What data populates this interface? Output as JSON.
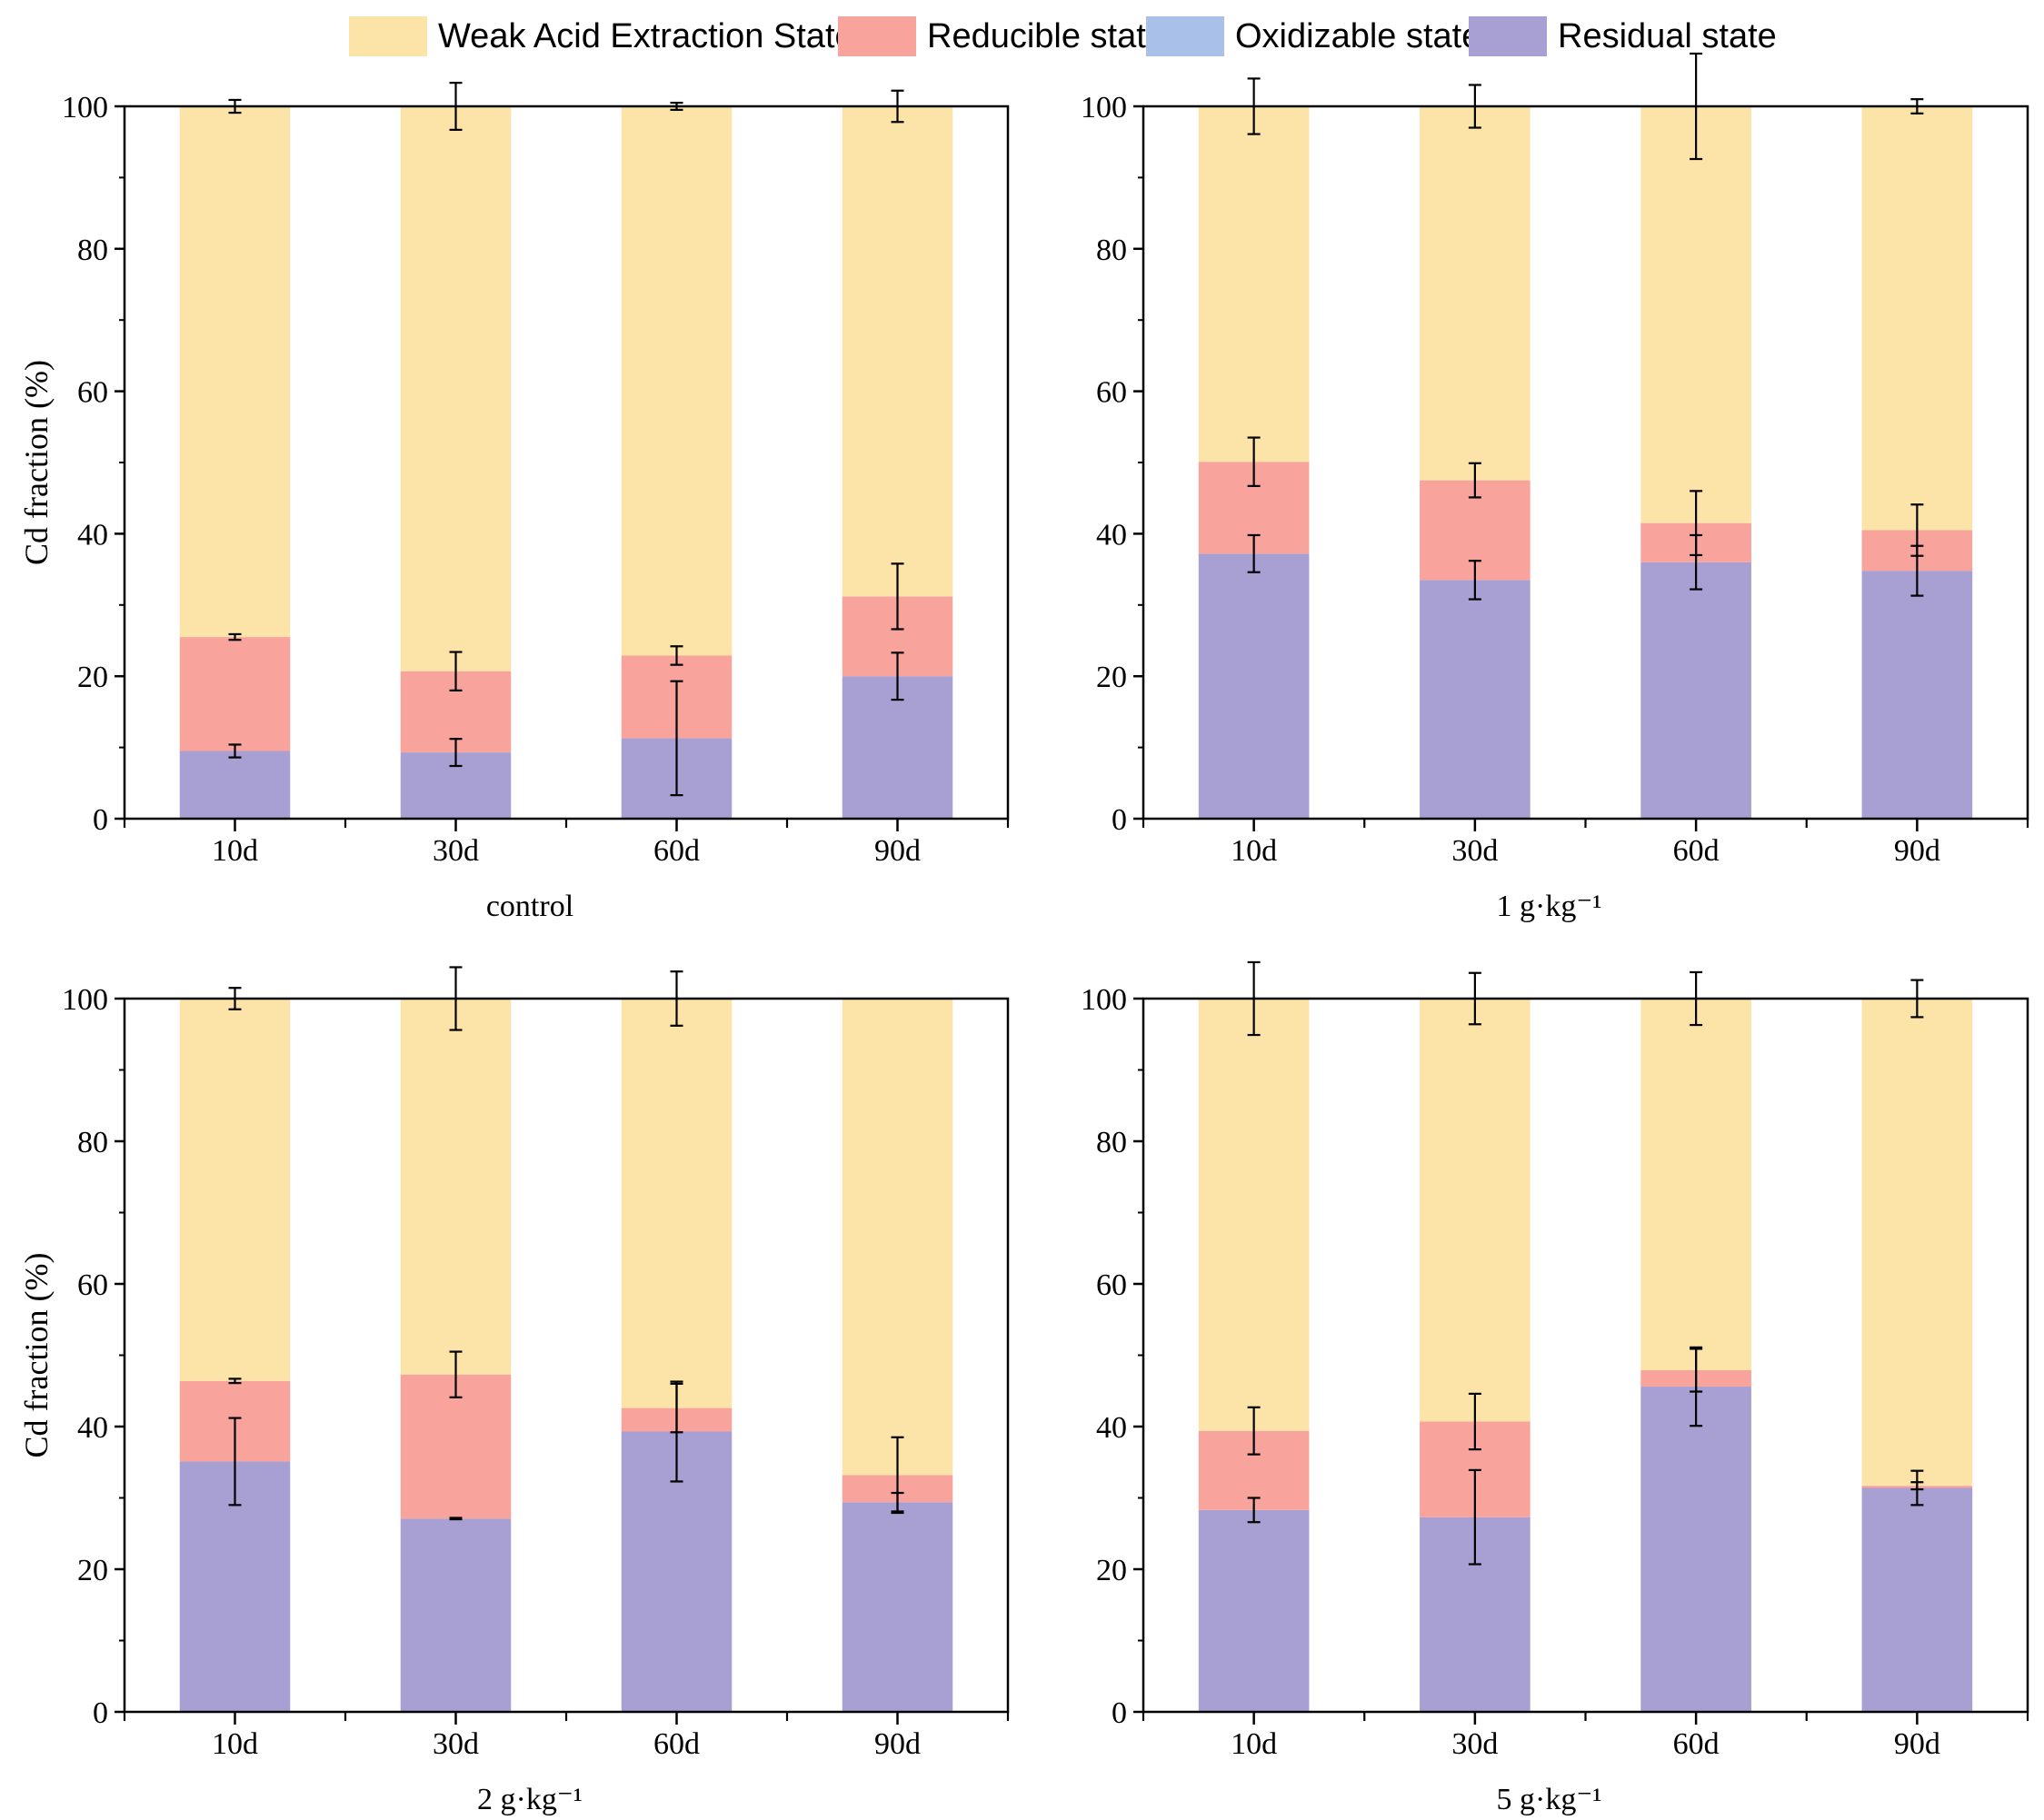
{
  "legend": [
    {
      "label": "Weak Acid Extraction State",
      "color": "#fce4a8"
    },
    {
      "label": "Reducible state",
      "color": "#f9a39d"
    },
    {
      "label": "Oxidizable state",
      "color": "#a9c1e9"
    },
    {
      "label": "Residual state",
      "color": "#a89fd2"
    }
  ],
  "chart_data": [
    {
      "type": "bar",
      "stacked": true,
      "title": "control",
      "ylabel": "Cd fraction (%)",
      "xlabel": "control",
      "categories": [
        "10d",
        "30d",
        "60d",
        "90d"
      ],
      "ylim": [
        0,
        100
      ],
      "yticks": [
        0,
        20,
        40,
        60,
        80,
        100
      ],
      "series": [
        {
          "name": "Residual state",
          "values": [
            9.5,
            9.3,
            11.3,
            20.0
          ],
          "errors": [
            0.9,
            1.9,
            8.0,
            3.3
          ]
        },
        {
          "name": "Oxidizable state",
          "values": [
            0,
            0,
            0,
            0
          ],
          "errors": [
            0,
            0,
            0,
            0
          ]
        },
        {
          "name": "Reducible state",
          "values": [
            16.0,
            11.4,
            11.6,
            11.2
          ],
          "errors": [
            0.4,
            2.7,
            1.3,
            4.6
          ]
        },
        {
          "name": "Weak Acid Extraction State",
          "values": [
            74.5,
            79.3,
            77.1,
            68.8
          ],
          "errors": [
            0.9,
            3.3,
            0.5,
            2.2
          ]
        }
      ]
    },
    {
      "type": "bar",
      "stacked": true,
      "title": "1 g·kg⁻¹",
      "ylabel": "",
      "xlabel": "1 g·kg⁻¹",
      "categories": [
        "10d",
        "30d",
        "60d",
        "90d"
      ],
      "ylim": [
        0,
        100
      ],
      "yticks": [
        0,
        20,
        40,
        60,
        80,
        100
      ],
      "series": [
        {
          "name": "Residual state",
          "values": [
            37.2,
            33.5,
            36.0,
            34.8
          ],
          "errors": [
            2.6,
            2.7,
            3.8,
            3.5
          ]
        },
        {
          "name": "Oxidizable state",
          "values": [
            0,
            0,
            0,
            0
          ],
          "errors": [
            0,
            0,
            0,
            0
          ]
        },
        {
          "name": "Reducible state",
          "values": [
            12.9,
            14.0,
            5.5,
            5.7
          ],
          "errors": [
            3.4,
            2.4,
            4.5,
            3.6
          ]
        },
        {
          "name": "Weak Acid Extraction State",
          "values": [
            49.9,
            52.5,
            58.5,
            59.5
          ],
          "errors": [
            3.9,
            3.0,
            7.4,
            1.0
          ]
        }
      ]
    },
    {
      "type": "bar",
      "stacked": true,
      "title": "2 g·kg⁻¹",
      "ylabel": "Cd fraction (%)",
      "xlabel": "2 g·kg⁻¹",
      "categories": [
        "10d",
        "30d",
        "60d",
        "90d"
      ],
      "ylim": [
        0,
        100
      ],
      "yticks": [
        0,
        20,
        40,
        60,
        80,
        100
      ],
      "series": [
        {
          "name": "Residual state",
          "values": [
            35.1,
            27.1,
            39.3,
            29.4
          ],
          "errors": [
            6.1,
            0.1,
            7.0,
            1.3
          ]
        },
        {
          "name": "Oxidizable state",
          "values": [
            0,
            0,
            0,
            0
          ],
          "errors": [
            0,
            0,
            0,
            0
          ]
        },
        {
          "name": "Reducible state",
          "values": [
            11.3,
            20.2,
            3.3,
            3.8
          ],
          "errors": [
            0.3,
            3.2,
            3.4,
            5.3
          ]
        },
        {
          "name": "Weak Acid Extraction State",
          "values": [
            53.6,
            52.7,
            57.4,
            66.8
          ],
          "errors": [
            1.5,
            4.4,
            3.8,
            0
          ]
        }
      ]
    },
    {
      "type": "bar",
      "stacked": true,
      "title": "5 g·kg⁻¹",
      "ylabel": "",
      "xlabel": "5 g·kg⁻¹",
      "categories": [
        "10d",
        "30d",
        "60d",
        "90d"
      ],
      "ylim": [
        0,
        100
      ],
      "yticks": [
        0,
        20,
        40,
        60,
        80,
        100
      ],
      "series": [
        {
          "name": "Residual state",
          "values": [
            28.3,
            27.3,
            45.6,
            31.4
          ],
          "errors": [
            1.7,
            6.6,
            5.5,
            2.4
          ]
        },
        {
          "name": "Oxidizable state",
          "values": [
            0,
            0,
            0,
            0
          ],
          "errors": [
            0,
            0,
            0,
            0
          ]
        },
        {
          "name": "Reducible state",
          "values": [
            11.1,
            13.4,
            2.3,
            0.3
          ],
          "errors": [
            3.3,
            3.9,
            3.0,
            0.5
          ]
        },
        {
          "name": "Weak Acid Extraction State",
          "values": [
            60.6,
            59.3,
            52.1,
            68.3
          ],
          "errors": [
            5.1,
            3.6,
            3.7,
            2.6
          ]
        }
      ]
    }
  ]
}
